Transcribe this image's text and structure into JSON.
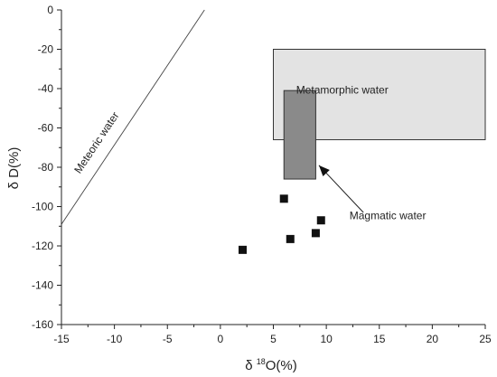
{
  "chart_data": {
    "type": "scatter",
    "xlabel": {
      "prefix": "δ ",
      "superscript": "18",
      "suffix": "O(%)"
    },
    "ylabel": "δ D(%)",
    "xlim": [
      -15,
      25
    ],
    "ylim": [
      -160,
      0
    ],
    "xticks": [
      -15,
      -10,
      -5,
      0,
      5,
      10,
      15,
      20,
      25
    ],
    "yticks": [
      0,
      -20,
      -40,
      -60,
      -80,
      -100,
      -120,
      -140,
      -160
    ],
    "points": [
      {
        "x": 2.1,
        "y": -122
      },
      {
        "x": 6.0,
        "y": -96
      },
      {
        "x": 6.6,
        "y": -116.5
      },
      {
        "x": 9.0,
        "y": -113.5
      },
      {
        "x": 9.5,
        "y": -107
      }
    ],
    "meteoric_water_line": {
      "label": "Meteoric water",
      "from": {
        "x": -15,
        "y": -109
      },
      "to": {
        "x": -1.5,
        "y": 0
      }
    },
    "regions": [
      {
        "name": "metamorphic",
        "label": "Metamorphic water",
        "x": [
          5,
          25
        ],
        "y": [
          -66,
          -20
        ],
        "fill": "#e3e3e3"
      },
      {
        "name": "magmatic",
        "label": "Magmatic water",
        "x": [
          6,
          9
        ],
        "y": [
          -86,
          -41
        ],
        "fill": "#8a8a8a"
      }
    ],
    "magmatic_arrow": {
      "tail": {
        "x": 13.5,
        "y": -103
      },
      "head": {
        "x": 9.3,
        "y": -79
      }
    },
    "grid": false
  }
}
